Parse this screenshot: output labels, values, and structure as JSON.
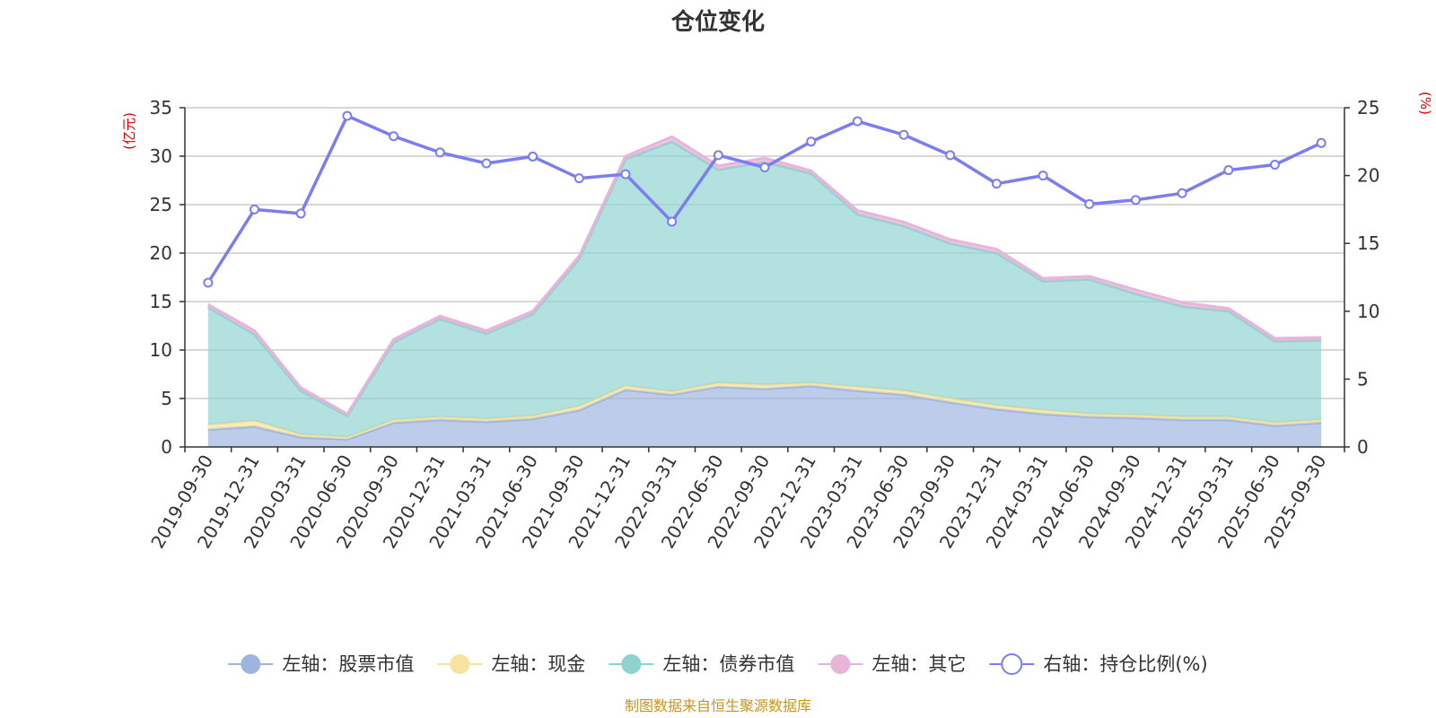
{
  "chart_data": {
    "type": "area",
    "title": "仓位变化",
    "y_left_unit": "(亿元)",
    "y_right_unit": "(%)",
    "y_left_ticks": [
      "0",
      "5",
      "10",
      "15",
      "20",
      "25",
      "30",
      "35"
    ],
    "y_right_ticks": [
      "0",
      "5",
      "10",
      "15",
      "20",
      "25"
    ],
    "ylim_left": [
      0,
      35
    ],
    "ylim_right": [
      0,
      25
    ],
    "grid": true,
    "stacked": true,
    "legend_position": "bottom",
    "x": [
      "2019-09-30",
      "2019-12-31",
      "2020-03-31",
      "2020-06-30",
      "2020-09-30",
      "2020-12-31",
      "2021-03-31",
      "2021-06-30",
      "2021-09-30",
      "2021-12-31",
      "2022-03-31",
      "2022-06-30",
      "2022-09-30",
      "2022-12-31",
      "2023-03-31",
      "2023-06-30",
      "2023-09-30",
      "2023-12-31",
      "2024-03-31",
      "2024-06-30",
      "2024-09-30",
      "2024-12-31",
      "2025-03-31",
      "2025-06-30",
      "2025-09-30"
    ],
    "series": [
      {
        "name": "左轴：股票市值",
        "axis": "left",
        "color": "#9db4e0",
        "values": [
          1.8,
          2.1,
          1.0,
          0.8,
          2.5,
          2.8,
          2.6,
          2.9,
          3.8,
          5.9,
          5.4,
          6.2,
          6.0,
          6.3,
          5.8,
          5.4,
          4.6,
          3.9,
          3.4,
          3.1,
          3.0,
          2.8,
          2.8,
          2.2,
          2.5
        ]
      },
      {
        "name": "左轴：现金",
        "axis": "left",
        "color": "#f6e3a1",
        "values": [
          0.5,
          0.6,
          0.3,
          0.2,
          0.3,
          0.3,
          0.3,
          0.3,
          0.4,
          0.4,
          0.3,
          0.4,
          0.4,
          0.3,
          0.4,
          0.4,
          0.4,
          0.4,
          0.4,
          0.3,
          0.3,
          0.3,
          0.3,
          0.3,
          0.3
        ]
      },
      {
        "name": "左轴：债券市值",
        "axis": "left",
        "color": "#8fd3d1",
        "values": [
          12.1,
          8.9,
          4.5,
          2.2,
          8.0,
          10.1,
          8.8,
          10.5,
          15.2,
          23.4,
          25.8,
          22.0,
          23.0,
          21.6,
          17.8,
          17.0,
          16.0,
          15.7,
          13.3,
          13.9,
          12.5,
          11.4,
          10.9,
          8.4,
          8.2
        ]
      },
      {
        "name": "左轴：其它",
        "axis": "left",
        "color": "#e8b4d8",
        "values": [
          0.3,
          0.4,
          0.3,
          0.2,
          0.3,
          0.3,
          0.3,
          0.3,
          0.3,
          0.3,
          0.5,
          0.4,
          0.4,
          0.3,
          0.4,
          0.4,
          0.4,
          0.4,
          0.3,
          0.3,
          0.4,
          0.4,
          0.3,
          0.3,
          0.3
        ]
      },
      {
        "name": "右轴：持仓比例(%)",
        "axis": "right",
        "color": "#7b7ef0",
        "values": [
          12.1,
          17.5,
          17.2,
          24.4,
          22.9,
          21.7,
          20.9,
          21.4,
          19.8,
          20.1,
          16.6,
          21.5,
          20.6,
          22.5,
          24.0,
          23.0,
          21.5,
          19.4,
          20.0,
          17.9,
          18.2,
          18.7,
          20.4,
          20.8,
          22.4
        ]
      }
    ],
    "source_note": "制图数据来自恒生聚源数据库"
  }
}
